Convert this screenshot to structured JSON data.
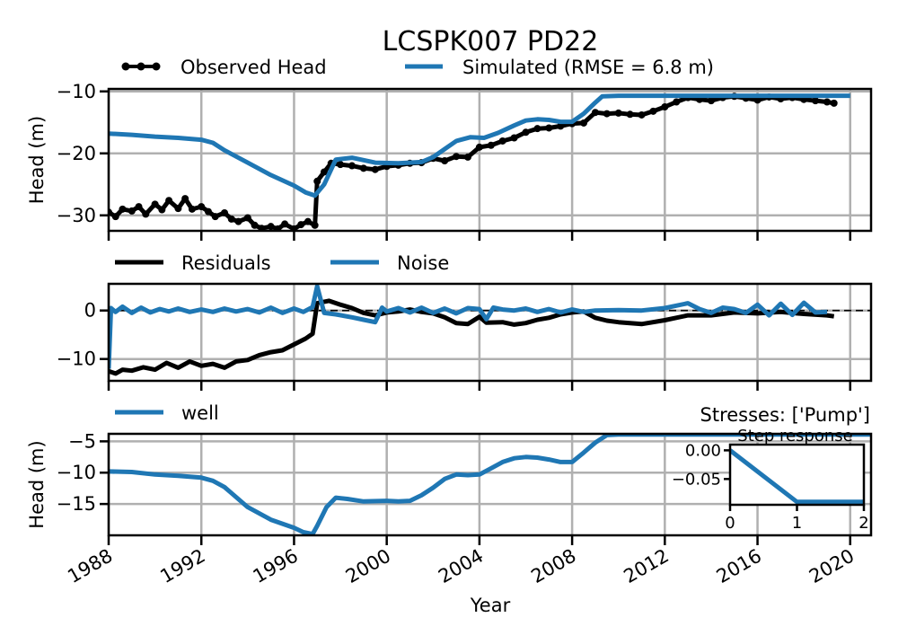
{
  "chart_data": [
    {
      "type": "line",
      "title": "LCSPK007 PD22",
      "ylabel": "Head (m)",
      "xlim": [
        1988.0,
        2020.9
      ],
      "ylim": [
        -32.5,
        -9.6
      ],
      "yticks": [
        -10,
        -20,
        -30
      ],
      "ytick_labels": [
        "−10",
        "−20",
        "−30"
      ],
      "grid": true,
      "legend_position": "top",
      "series": [
        {
          "name": "Observed Head",
          "color": "#000000",
          "marker": "dot",
          "x": [
            1988.0,
            1988.3,
            1988.6,
            1989.0,
            1989.3,
            1989.6,
            1990.0,
            1990.3,
            1990.6,
            1991.0,
            1991.3,
            1991.6,
            1992.0,
            1992.3,
            1992.6,
            1993.0,
            1993.3,
            1993.6,
            1994.0,
            1994.3,
            1994.6,
            1995.0,
            1995.3,
            1995.6,
            1996.0,
            1996.3,
            1996.6,
            1996.9,
            1997.0,
            1997.3,
            1997.6,
            1998.0,
            1998.5,
            1999.0,
            1999.5,
            2000.0,
            2000.5,
            2001.0,
            2001.5,
            2002.0,
            2002.5,
            2003.0,
            2003.5,
            2004.0,
            2004.5,
            2005.0,
            2005.5,
            2006.0,
            2006.5,
            2007.0,
            2007.5,
            2008.0,
            2008.5,
            2009.0,
            2009.5,
            2010.0,
            2010.5,
            2011.0,
            2011.5,
            2012.0,
            2012.5,
            2013.0,
            2013.5,
            2014.0,
            2014.5,
            2015.0,
            2015.5,
            2016.0,
            2016.5,
            2017.0,
            2017.5,
            2018.0,
            2018.5,
            2019.0,
            2019.3
          ],
          "y": [
            -29.5,
            -30.2,
            -29.0,
            -29.3,
            -28.6,
            -29.8,
            -28.2,
            -29.1,
            -27.6,
            -28.9,
            -27.3,
            -29.0,
            -28.6,
            -29.4,
            -30.2,
            -29.6,
            -30.6,
            -31.0,
            -30.4,
            -31.6,
            -32.1,
            -31.8,
            -32.2,
            -31.4,
            -32.2,
            -31.5,
            -31.0,
            -31.6,
            -24.5,
            -23.0,
            -21.6,
            -21.8,
            -22.0,
            -22.4,
            -22.6,
            -22.1,
            -21.9,
            -21.6,
            -21.5,
            -20.8,
            -21.2,
            -20.5,
            -20.6,
            -19.0,
            -18.7,
            -18.0,
            -17.5,
            -16.6,
            -16.0,
            -15.9,
            -15.6,
            -15.2,
            -15.1,
            -13.4,
            -13.6,
            -13.5,
            -13.7,
            -13.8,
            -13.2,
            -12.5,
            -11.7,
            -11.0,
            -11.3,
            -11.5,
            -11.0,
            -10.8,
            -11.1,
            -11.4,
            -10.9,
            -11.2,
            -11.0,
            -11.3,
            -11.5,
            -11.7,
            -11.9
          ]
        },
        {
          "name": "Simulated (RMSE = 6.8 m)",
          "color": "#1f77b4",
          "x": [
            1988.0,
            1989.0,
            1990.0,
            1991.0,
            1992.0,
            1992.5,
            1993.0,
            1994.0,
            1995.0,
            1996.0,
            1996.5,
            1996.9,
            1997.3,
            1997.8,
            1998.5,
            1999.5,
            2000.5,
            2001.5,
            2002.0,
            2002.5,
            2003.0,
            2003.6,
            2004.2,
            2004.8,
            2005.5,
            2006.0,
            2006.5,
            2007.0,
            2007.5,
            2008.0,
            2008.5,
            2009.0,
            2009.3,
            2010.0,
            2012.0,
            2014.0,
            2016.0,
            2018.0,
            2020.0
          ],
          "y": [
            -16.8,
            -17.0,
            -17.3,
            -17.5,
            -17.8,
            -18.3,
            -19.5,
            -21.5,
            -23.5,
            -25.2,
            -26.3,
            -26.8,
            -25.0,
            -21.0,
            -20.7,
            -21.5,
            -21.6,
            -21.4,
            -20.6,
            -19.3,
            -18.0,
            -17.4,
            -17.5,
            -16.7,
            -15.5,
            -14.7,
            -14.5,
            -14.6,
            -14.9,
            -14.9,
            -13.6,
            -11.8,
            -10.8,
            -10.7,
            -10.7,
            -10.7,
            -10.7,
            -10.7,
            -10.7
          ]
        }
      ]
    },
    {
      "type": "line",
      "xlim": [
        1988.0,
        2020.9
      ],
      "ylim": [
        -14.5,
        5.5
      ],
      "yticks": [
        0,
        -10
      ],
      "ytick_labels": [
        "0",
        "−10"
      ],
      "grid": true,
      "legend_position": "top",
      "zero_line": true,
      "series": [
        {
          "name": "Residuals",
          "color": "#000000",
          "x": [
            1988.0,
            1988.3,
            1988.6,
            1989.0,
            1989.5,
            1990.0,
            1990.5,
            1991.0,
            1991.5,
            1992.0,
            1992.5,
            1993.0,
            1993.5,
            1994.0,
            1994.5,
            1995.0,
            1995.5,
            1996.0,
            1996.5,
            1996.8,
            1997.0,
            1997.5,
            1998.0,
            1998.5,
            1999.0,
            1999.5,
            2000.0,
            2000.5,
            2001.0,
            2001.5,
            2002.0,
            2002.5,
            2003.0,
            2003.5,
            2004.0,
            2004.3,
            2005.0,
            2005.5,
            2006.0,
            2006.5,
            2007.0,
            2007.5,
            2008.0,
            2008.5,
            2009.0,
            2009.5,
            2010.0,
            2011.0,
            2012.0,
            2013.0,
            2014.0,
            2015.0,
            2016.0,
            2017.0,
            2018.0,
            2019.0,
            2019.3
          ],
          "y": [
            -12.5,
            -13.0,
            -12.2,
            -12.4,
            -11.7,
            -12.2,
            -10.8,
            -11.8,
            -10.5,
            -11.4,
            -11.0,
            -11.8,
            -10.5,
            -10.2,
            -9.2,
            -8.6,
            -8.2,
            -7.0,
            -5.8,
            -4.8,
            1.5,
            2.0,
            1.2,
            0.5,
            -0.5,
            -1.0,
            -0.4,
            -0.2,
            0.2,
            -0.3,
            -0.6,
            -1.4,
            -2.6,
            -2.8,
            -1.3,
            -2.5,
            -2.4,
            -2.9,
            -2.6,
            -1.9,
            -1.5,
            -0.8,
            -0.4,
            -0.2,
            -1.5,
            -2.1,
            -2.4,
            -2.8,
            -2.0,
            -1.0,
            -1.0,
            -0.4,
            -0.6,
            -0.3,
            -0.7,
            -1.0,
            -1.2
          ]
        },
        {
          "name": "Noise",
          "color": "#1f77b4",
          "x": [
            1988.0,
            1988.1,
            1988.3,
            1988.6,
            1989.0,
            1989.4,
            1989.8,
            1990.2,
            1990.6,
            1991.0,
            1991.5,
            1992.0,
            1992.5,
            1993.0,
            1993.5,
            1994.0,
            1994.5,
            1995.0,
            1995.5,
            1996.0,
            1996.4,
            1996.8,
            1997.0,
            1997.3,
            1997.8,
            1998.5,
            1999.0,
            1999.5,
            1999.8,
            2000.0,
            2000.5,
            2001.0,
            2001.5,
            2002.0,
            2002.5,
            2003.0,
            2003.5,
            2004.0,
            2004.3,
            2004.6,
            2005.0,
            2005.5,
            2006.0,
            2006.5,
            2007.0,
            2007.5,
            2008.0,
            2008.5,
            2009.0,
            2010.0,
            2011.0,
            2012.0,
            2013.0,
            2013.5,
            2014.0,
            2014.5,
            2015.0,
            2015.5,
            2016.0,
            2016.5,
            2017.0,
            2017.5,
            2018.0,
            2018.5,
            2019.0
          ],
          "y": [
            -12.0,
            0.5,
            -0.3,
            0.8,
            -0.5,
            0.6,
            -0.4,
            0.3,
            -0.2,
            0.4,
            -0.3,
            0.2,
            -0.3,
            0.4,
            -0.2,
            0.3,
            -0.4,
            0.6,
            -0.5,
            0.4,
            -0.3,
            0.7,
            5.0,
            -0.5,
            -0.8,
            -1.4,
            -1.9,
            -2.4,
            0.6,
            -0.2,
            0.5,
            -0.4,
            0.6,
            -0.5,
            0.4,
            -0.6,
            0.5,
            0.3,
            -1.8,
            0.6,
            0.2,
            0.0,
            0.4,
            -0.3,
            0.3,
            -0.4,
            0.2,
            -0.3,
            0.0,
            0.1,
            0.0,
            0.5,
            1.5,
            0.3,
            -0.5,
            0.6,
            0.3,
            -0.5,
            1.2,
            -1.0,
            1.4,
            -0.9,
            1.6,
            -0.4,
            -0.3
          ]
        }
      ]
    },
    {
      "type": "line",
      "ylabel": "Head (m)",
      "xlabel": "Year",
      "xlim": [
        1988.0,
        2020.9
      ],
      "ylim": [
        -20.0,
        -3.8
      ],
      "yticks": [
        -5,
        -10,
        -15
      ],
      "ytick_labels": [
        "−5",
        "−10",
        "−15"
      ],
      "xticks": [
        1988,
        1992,
        1996,
        2000,
        2004,
        2008,
        2012,
        2016,
        2020
      ],
      "xtick_labels": [
        "1988",
        "1992",
        "1996",
        "2000",
        "2004",
        "2008",
        "2012",
        "2016",
        "2020"
      ],
      "grid": true,
      "legend_position": "top-left",
      "annotation": "Stresses: ['Pump']",
      "series": [
        {
          "name": "well",
          "color": "#1f77b4",
          "x": [
            1988.0,
            1989.0,
            1990.0,
            1991.0,
            1992.0,
            1992.5,
            1993.0,
            1994.0,
            1995.0,
            1996.0,
            1996.4,
            1996.8,
            1997.0,
            1997.4,
            1997.8,
            1998.3,
            1999.0,
            2000.0,
            2000.5,
            2001.0,
            2001.5,
            2002.0,
            2002.5,
            2003.0,
            2003.5,
            2004.0,
            2004.5,
            2005.0,
            2005.5,
            2006.0,
            2006.5,
            2007.0,
            2007.5,
            2008.0,
            2008.5,
            2009.0,
            2009.5,
            2010.0,
            2014.0,
            2018.0,
            2020.9
          ],
          "y": [
            -9.8,
            -9.9,
            -10.3,
            -10.5,
            -10.8,
            -11.3,
            -12.3,
            -15.5,
            -17.5,
            -18.8,
            -19.5,
            -19.8,
            -18.5,
            -15.5,
            -14.0,
            -14.2,
            -14.6,
            -14.5,
            -14.6,
            -14.5,
            -13.6,
            -12.4,
            -11.0,
            -10.3,
            -10.4,
            -10.3,
            -9.3,
            -8.3,
            -7.7,
            -7.5,
            -7.6,
            -7.9,
            -8.3,
            -8.3,
            -6.8,
            -5.2,
            -4.0,
            -3.9,
            -3.9,
            -3.9,
            -3.9
          ]
        }
      ],
      "inset": {
        "type": "line",
        "title": "Step response",
        "xlim": [
          0,
          2
        ],
        "ylim": [
          -0.095,
          0.01
        ],
        "xticks": [
          0,
          1,
          2
        ],
        "xtick_labels": [
          "0",
          "1",
          "2"
        ],
        "yticks": [
          0.0,
          -0.05
        ],
        "ytick_labels": [
          "0.00",
          "−0.05"
        ],
        "x": [
          0,
          1,
          2
        ],
        "y": [
          0.0,
          -0.09,
          -0.09
        ],
        "color": "#1f77b4"
      }
    }
  ]
}
